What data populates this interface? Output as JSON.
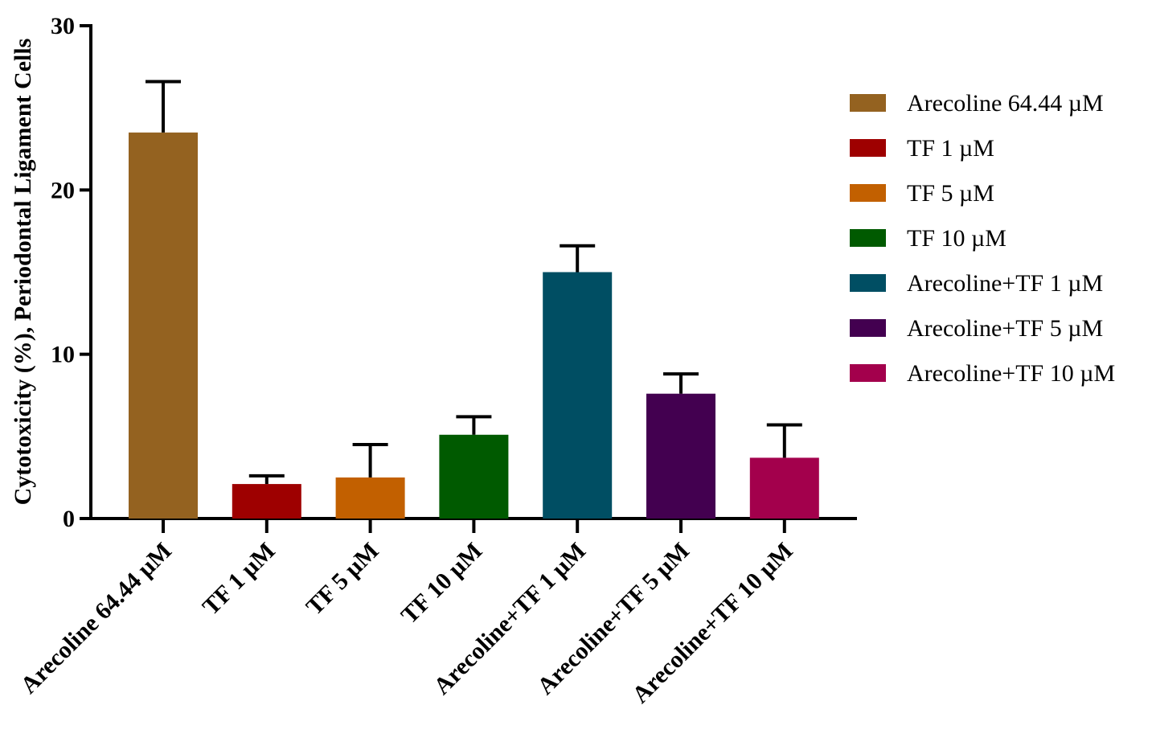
{
  "chart_data": {
    "type": "bar",
    "title": "",
    "xlabel": "",
    "ylabel": "Cytotoxicity (%), Periodontal Ligament Cells",
    "ylim": [
      0,
      30
    ],
    "yticks": [
      "0",
      "10",
      "20",
      "30"
    ],
    "categories": [
      "Arecoline 64.44 µM",
      "TF 1 µM",
      "TF 5 µM",
      "TF 10 µM",
      "Arecoline+TF 1 µM",
      "Arecoline+TF 5 µM",
      "Arecoline+TF 10 µM"
    ],
    "values": [
      23.5,
      2.1,
      2.5,
      5.1,
      15.0,
      7.6,
      3.7
    ],
    "errors": [
      3.1,
      0.5,
      2.0,
      1.1,
      1.6,
      1.2,
      2.0
    ],
    "colors": [
      "#946220",
      "#9e0000",
      "#c26000",
      "#005a00",
      "#004e63",
      "#430050",
      "#a3004c"
    ],
    "legend": {
      "position": "right",
      "entries": [
        "Arecoline 64.44 µM",
        "TF 1 µM",
        "TF 5 µM",
        "TF 10 µM",
        "Arecoline+TF 1 µM",
        "Arecoline+TF 5 µM",
        "Arecoline+TF 10 µM"
      ]
    },
    "grid": false
  }
}
